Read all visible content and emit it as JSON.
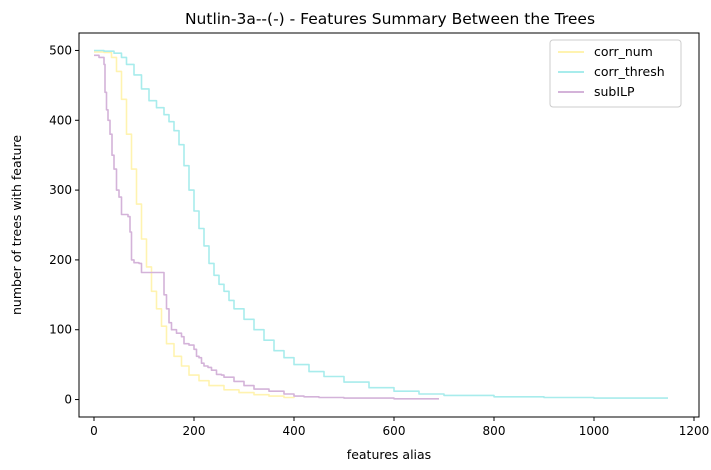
{
  "chart_data": {
    "type": "line",
    "title": "Nutlin-3a--(-) - Features Summary Between the Trees",
    "xlabel": "features alias",
    "ylabel": "number of trees with feature",
    "xlim": [
      -30,
      1210
    ],
    "ylim": [
      -25,
      525
    ],
    "x_ticks": [
      0,
      200,
      400,
      600,
      800,
      1000,
      1200
    ],
    "y_ticks": [
      0,
      100,
      200,
      300,
      400,
      500
    ],
    "grid": false,
    "legend_position": "upper-right",
    "series": [
      {
        "name": "corr_num",
        "color": "#fff3b0",
        "points": [
          [
            0,
            498
          ],
          [
            20,
            497
          ],
          [
            35,
            490
          ],
          [
            45,
            470
          ],
          [
            55,
            430
          ],
          [
            65,
            380
          ],
          [
            75,
            330
          ],
          [
            85,
            280
          ],
          [
            95,
            230
          ],
          [
            105,
            190
          ],
          [
            115,
            155
          ],
          [
            125,
            130
          ],
          [
            135,
            105
          ],
          [
            145,
            80
          ],
          [
            160,
            62
          ],
          [
            175,
            48
          ],
          [
            190,
            35
          ],
          [
            210,
            27
          ],
          [
            230,
            20
          ],
          [
            260,
            14
          ],
          [
            290,
            10
          ],
          [
            320,
            7
          ],
          [
            350,
            5
          ],
          [
            380,
            3
          ],
          [
            400,
            2
          ]
        ]
      },
      {
        "name": "corr_thresh",
        "color": "#a8ecec",
        "points": [
          [
            0,
            500
          ],
          [
            20,
            499
          ],
          [
            40,
            496
          ],
          [
            55,
            490
          ],
          [
            65,
            480
          ],
          [
            80,
            465
          ],
          [
            95,
            445
          ],
          [
            110,
            428
          ],
          [
            125,
            418
          ],
          [
            140,
            408
          ],
          [
            150,
            398
          ],
          [
            160,
            385
          ],
          [
            170,
            365
          ],
          [
            180,
            335
          ],
          [
            190,
            300
          ],
          [
            200,
            270
          ],
          [
            210,
            245
          ],
          [
            220,
            220
          ],
          [
            230,
            195
          ],
          [
            240,
            178
          ],
          [
            250,
            165
          ],
          [
            260,
            155
          ],
          [
            270,
            142
          ],
          [
            280,
            130
          ],
          [
            300,
            115
          ],
          [
            320,
            100
          ],
          [
            340,
            85
          ],
          [
            360,
            70
          ],
          [
            380,
            60
          ],
          [
            400,
            50
          ],
          [
            430,
            40
          ],
          [
            460,
            33
          ],
          [
            500,
            25
          ],
          [
            550,
            17
          ],
          [
            600,
            12
          ],
          [
            650,
            8
          ],
          [
            700,
            6
          ],
          [
            800,
            4
          ],
          [
            900,
            3
          ],
          [
            1000,
            2
          ],
          [
            1148,
            2
          ]
        ]
      },
      {
        "name": "subILP",
        "color": "#d4b3d9",
        "points": [
          [
            0,
            493
          ],
          [
            10,
            490
          ],
          [
            20,
            480
          ],
          [
            22,
            440
          ],
          [
            25,
            415
          ],
          [
            28,
            400
          ],
          [
            32,
            380
          ],
          [
            36,
            350
          ],
          [
            40,
            330
          ],
          [
            45,
            300
          ],
          [
            50,
            290
          ],
          [
            55,
            265
          ],
          [
            68,
            262
          ],
          [
            72,
            240
          ],
          [
            75,
            200
          ],
          [
            80,
            196
          ],
          [
            90,
            195
          ],
          [
            95,
            182
          ],
          [
            135,
            182
          ],
          [
            140,
            150
          ],
          [
            145,
            130
          ],
          [
            150,
            110
          ],
          [
            155,
            100
          ],
          [
            165,
            95
          ],
          [
            175,
            90
          ],
          [
            180,
            80
          ],
          [
            190,
            78
          ],
          [
            200,
            72
          ],
          [
            205,
            62
          ],
          [
            210,
            60
          ],
          [
            215,
            52
          ],
          [
            220,
            48
          ],
          [
            228,
            46
          ],
          [
            235,
            42
          ],
          [
            245,
            36
          ],
          [
            255,
            35
          ],
          [
            260,
            32
          ],
          [
            280,
            26
          ],
          [
            300,
            20
          ],
          [
            320,
            15
          ],
          [
            350,
            12
          ],
          [
            380,
            8
          ],
          [
            400,
            5
          ],
          [
            420,
            4
          ],
          [
            450,
            3
          ],
          [
            500,
            2
          ],
          [
            600,
            1
          ],
          [
            690,
            1
          ]
        ]
      }
    ]
  }
}
